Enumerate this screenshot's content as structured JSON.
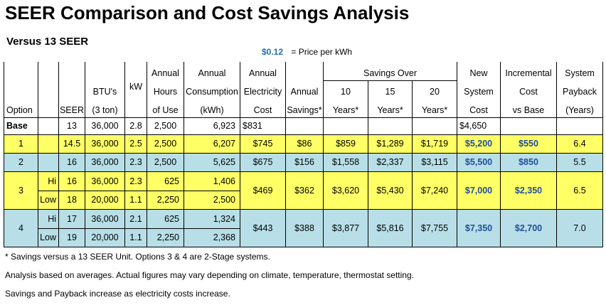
{
  "title": "SEER Comparison and Cost Savings Analysis",
  "subtitle": "Versus 13 SEER",
  "price": {
    "value": "$0.12",
    "label": "= Price per kWh"
  },
  "headers": {
    "option": "Option",
    "seer": "SEER",
    "btu1": "BTU's",
    "btu2": "(3 ton)",
    "kw": "kW",
    "hours1": "Annual",
    "hours2": "Hours",
    "hours3": "of Use",
    "cons1": "Annual",
    "cons2": "Consumption",
    "cons3": "(kWh)",
    "elec1": "Annual",
    "elec2": "Electricity",
    "elec3": "Cost",
    "sav1": "Annual",
    "sav2": "Savings*",
    "over": "Savings Over",
    "y10a": "10",
    "y10b": "Years*",
    "y15a": "15",
    "y15b": "Years*",
    "y20a": "20",
    "y20b": "Years*",
    "new1": "New",
    "new2": "System",
    "new3": "Cost",
    "inc1": "Incremental",
    "inc2": "Cost",
    "inc3": "vs Base",
    "pay1": "System",
    "pay2": "Payback",
    "pay3": "(Years)"
  },
  "rows": {
    "base": {
      "option": "Base",
      "seer": "13",
      "btu": "36,000",
      "kw": "2.8",
      "hours": "2,500",
      "cons": "6,923",
      "elec": "$831",
      "newcost": "$4,650"
    },
    "r1": {
      "option": "1",
      "seer": "14.5",
      "btu": "36,000",
      "kw": "2.5",
      "hours": "2,500",
      "cons": "6,207",
      "elec": "$745",
      "sav": "$86",
      "y10": "$859",
      "y15": "$1,289",
      "y20": "$1,719",
      "newcost": "$5,200",
      "inc": "$550",
      "pay": "6.4"
    },
    "r2": {
      "option": "2",
      "seer": "16",
      "btu": "36,000",
      "kw": "2.3",
      "hours": "2,500",
      "cons": "5,625",
      "elec": "$675",
      "sav": "$156",
      "y10": "$1,558",
      "y15": "$2,337",
      "y20": "$3,115",
      "newcost": "$5,500",
      "inc": "$850",
      "pay": "5.5"
    },
    "r3": {
      "option": "3",
      "hi": {
        "stage": "Hi",
        "seer": "16",
        "btu": "36,000",
        "kw": "2.3",
        "hours": "625",
        "cons": "1,406"
      },
      "low": {
        "stage": "Low",
        "seer": "18",
        "btu": "20,000",
        "kw": "1.1",
        "hours": "2,250",
        "cons": "2,500"
      },
      "elec": "$469",
      "sav": "$362",
      "y10": "$3,620",
      "y15": "$5,430",
      "y20": "$7,240",
      "newcost": "$7,000",
      "inc": "$2,350",
      "pay": "6.5"
    },
    "r4": {
      "option": "4",
      "hi": {
        "stage": "Hi",
        "seer": "17",
        "btu": "36,000",
        "kw": "2.1",
        "hours": "625",
        "cons": "1,324"
      },
      "low": {
        "stage": "Low",
        "seer": "19",
        "btu": "20,000",
        "kw": "1.1",
        "hours": "2,250",
        "cons": "2,368"
      },
      "elec": "$443",
      "sav": "$388",
      "y10": "$3,877",
      "y15": "$5,816",
      "y20": "$7,755",
      "newcost": "$7,350",
      "inc": "$2,700",
      "pay": "7.0"
    }
  },
  "notes": [
    "* Savings versus a 13 SEER Unit.   Options 3 & 4 are 2-Stage systems.",
    "Analysis based on averages. Actual figures may vary depending on climate, temperature, thermostat setting.",
    "Savings and Payback increase as electricity costs increase."
  ],
  "colors": {
    "yellow": "#ffff66",
    "blue": "#b8dfe8",
    "price": "#1f6eb5",
    "navy": "#1f4e9a"
  }
}
